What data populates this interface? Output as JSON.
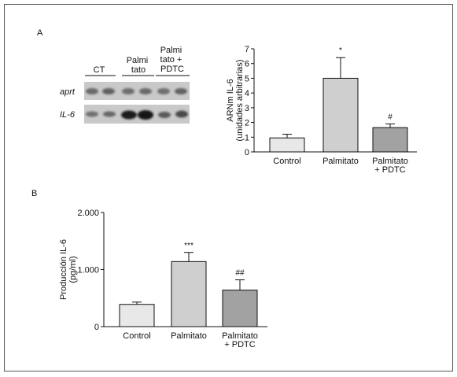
{
  "panel_a": {
    "letter": "A",
    "blot": {
      "groups": [
        {
          "lines": [
            "CT"
          ]
        },
        {
          "lines": [
            "Palmi",
            "tato"
          ]
        },
        {
          "lines": [
            "Palmi",
            "tato +",
            "PDTC"
          ]
        }
      ],
      "genes": [
        "aprt",
        "IL-6"
      ]
    }
  },
  "panel_b": {
    "letter": "B"
  },
  "chart_data": [
    {
      "type": "bar",
      "title": "",
      "ylabel": [
        "ARNm IL-6",
        "(unidades arbitrarias)"
      ],
      "xlabel": "",
      "categories": [
        [
          "Control"
        ],
        [
          "Palmitato"
        ],
        [
          "Palmitato",
          "+ PDTC"
        ]
      ],
      "values": [
        0.95,
        5.0,
        1.65
      ],
      "errors": [
        0.25,
        1.4,
        0.25
      ],
      "annotations": [
        "",
        "*",
        "#"
      ],
      "colors": [
        "#e8e8e8",
        "#cfcfcf",
        "#a2a2a2"
      ],
      "ylim": [
        0,
        7
      ],
      "yticks": [
        "0",
        "1",
        "2",
        "3",
        "4",
        "5",
        "6",
        "7"
      ],
      "ytick_values": [
        0,
        1,
        2,
        3,
        4,
        5,
        6,
        7
      ],
      "grid": false
    },
    {
      "type": "bar",
      "title": "",
      "ylabel": [
        "Producción IL-6",
        "(pg/ml)"
      ],
      "xlabel": "",
      "categories": [
        [
          "Control"
        ],
        [
          "Palmitato"
        ],
        [
          "Palmitato",
          "+ PDTC"
        ]
      ],
      "values": [
        390,
        1140,
        640
      ],
      "errors": [
        40,
        160,
        180
      ],
      "annotations": [
        "",
        "***",
        "##"
      ],
      "colors": [
        "#e8e8e8",
        "#cfcfcf",
        "#a2a2a2"
      ],
      "ylim": [
        0,
        2000
      ],
      "yticks": [
        "0",
        "1.000",
        "2.000"
      ],
      "ytick_values": [
        0,
        1000,
        2000
      ],
      "grid": false
    }
  ]
}
